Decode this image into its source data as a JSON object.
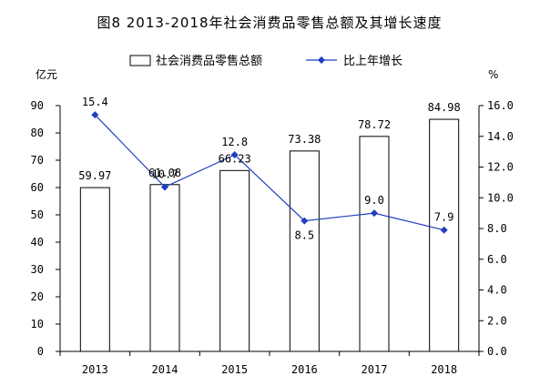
{
  "chart_data": {
    "type": "bar",
    "title": "图8  2013-2018年社会消费品零售总额及其增长速度",
    "categories": [
      "2013",
      "2014",
      "2015",
      "2016",
      "2017",
      "2018"
    ],
    "y_left": {
      "unit": "亿元",
      "ylim": [
        0,
        90
      ],
      "ticks": [
        "0",
        "10",
        "20",
        "30",
        "40",
        "50",
        "60",
        "70",
        "80",
        "90"
      ]
    },
    "y_right": {
      "unit": "%",
      "ylim": [
        0,
        16
      ],
      "ticks": [
        "0.0",
        "2.0",
        "4.0",
        "6.0",
        "8.0",
        "10.0",
        "12.0",
        "14.0",
        "16.0"
      ]
    },
    "series": [
      {
        "name": "社会消费品零售总额",
        "type": "bar",
        "axis": "left",
        "values": [
          59.97,
          61.08,
          66.23,
          73.38,
          78.72,
          84.98
        ],
        "labels": [
          "59.97",
          "61.08",
          "66.23",
          "73.38",
          "78.72",
          "84.98"
        ]
      },
      {
        "name": "比上年增长",
        "type": "line",
        "axis": "right",
        "color": "#1f3fbf",
        "values": [
          15.4,
          10.7,
          12.8,
          8.5,
          9.0,
          7.9
        ],
        "labels": [
          "15.4",
          "10.7",
          "12.8",
          "8.5",
          "9.0",
          "7.9"
        ]
      }
    ],
    "legend_position": "top-center",
    "grid": false
  }
}
